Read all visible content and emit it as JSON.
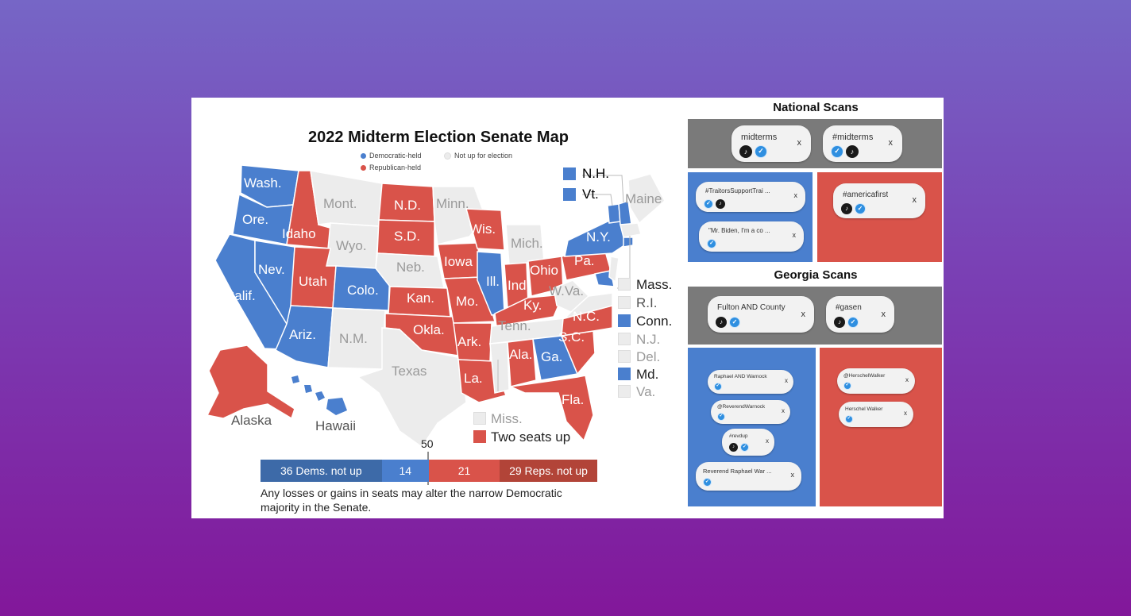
{
  "map": {
    "title": "2022 Midterm Election Senate Map",
    "legend": {
      "dem": "Democratic-held",
      "none": "Not up for election",
      "rep": "Republican-held"
    },
    "colors": {
      "dem": "#4a7fce",
      "rep": "#d9534a",
      "none": "#ececec"
    },
    "states": [
      {
        "name": "Wash.",
        "party": "dem"
      },
      {
        "name": "Ore.",
        "party": "dem"
      },
      {
        "name": "Calif.",
        "party": "dem"
      },
      {
        "name": "Nev.",
        "party": "dem"
      },
      {
        "name": "Idaho",
        "party": "rep"
      },
      {
        "name": "Mont.",
        "party": "none"
      },
      {
        "name": "Wyo.",
        "party": "none"
      },
      {
        "name": "Utah",
        "party": "rep"
      },
      {
        "name": "Colo.",
        "party": "dem"
      },
      {
        "name": "Ariz.",
        "party": "dem"
      },
      {
        "name": "N.M.",
        "party": "none"
      },
      {
        "name": "N.D.",
        "party": "rep"
      },
      {
        "name": "S.D.",
        "party": "rep"
      },
      {
        "name": "Neb.",
        "party": "none"
      },
      {
        "name": "Kan.",
        "party": "rep"
      },
      {
        "name": "Okla.",
        "party": "rep"
      },
      {
        "name": "Texas",
        "party": "none"
      },
      {
        "name": "Minn.",
        "party": "none"
      },
      {
        "name": "Iowa",
        "party": "rep"
      },
      {
        "name": "Mo.",
        "party": "rep"
      },
      {
        "name": "Ark.",
        "party": "rep"
      },
      {
        "name": "La.",
        "party": "rep"
      },
      {
        "name": "Wis.",
        "party": "rep"
      },
      {
        "name": "Ill.",
        "party": "dem"
      },
      {
        "name": "Mich.",
        "party": "none"
      },
      {
        "name": "Ind.",
        "party": "rep"
      },
      {
        "name": "Ohio",
        "party": "rep"
      },
      {
        "name": "Ky.",
        "party": "rep"
      },
      {
        "name": "Tenn.",
        "party": "none"
      },
      {
        "name": "Ala.",
        "party": "rep"
      },
      {
        "name": "Ga.",
        "party": "dem"
      },
      {
        "name": "Fla.",
        "party": "rep"
      },
      {
        "name": "S.C.",
        "party": "rep"
      },
      {
        "name": "N.C.",
        "party": "rep"
      },
      {
        "name": "W.Va.",
        "party": "none"
      },
      {
        "name": "Pa.",
        "party": "rep"
      },
      {
        "name": "N.Y.",
        "party": "dem"
      },
      {
        "name": "Maine",
        "party": "none"
      },
      {
        "name": "Alaska",
        "party": "rep"
      },
      {
        "name": "Hawaii",
        "party": "dem"
      }
    ],
    "ne_callouts": [
      {
        "name": "N.H.",
        "party": "dem"
      },
      {
        "name": "Vt.",
        "party": "dem"
      }
    ],
    "east_callouts": [
      {
        "name": "Mass.",
        "party": "none"
      },
      {
        "name": "R.I.",
        "party": "none"
      },
      {
        "name": "Conn.",
        "party": "dem"
      },
      {
        "name": "N.J.",
        "party": "none"
      },
      {
        "name": "Del.",
        "party": "none"
      },
      {
        "name": "Md.",
        "party": "dem"
      },
      {
        "name": "Va.",
        "party": "none"
      }
    ],
    "extra_legend": {
      "miss": "Miss.",
      "two_seats": "Two seats up"
    },
    "seat_bar": {
      "marker": "50",
      "segments": [
        {
          "label": "36 Dems. not up",
          "seats": 36,
          "color": "#3d6aa8"
        },
        {
          "label": "14",
          "seats": 14,
          "color": "#4a7fce"
        },
        {
          "label": "21",
          "seats": 21,
          "color": "#d9534a"
        },
        {
          "label": "29 Reps. not up",
          "seats": 29,
          "color": "#b24438"
        }
      ]
    },
    "note": "Any losses or gains in seats may alter the narrow Democratic majority in the Senate."
  },
  "scans": {
    "national_title": "National Scans",
    "georgia_title": "Georgia Scans",
    "close_glyph": "x",
    "national_neutral": [
      {
        "text": "midterms",
        "icons": [
          "tiktok",
          "twitter"
        ]
      },
      {
        "text": "#midterms",
        "icons": [
          "twitter",
          "tiktok"
        ]
      }
    ],
    "national_dem": [
      {
        "text": "#TraitorsSupportTrai ...",
        "icons": [
          "twitter",
          "tiktok"
        ]
      },
      {
        "text": "\"Mr. Biden, I'm a co ...",
        "icons": [
          "twitter"
        ]
      }
    ],
    "national_rep": [
      {
        "text": "#americafirst",
        "icons": [
          "tiktok",
          "twitter"
        ]
      }
    ],
    "georgia_neutral": [
      {
        "text": "Fulton AND County",
        "icons": [
          "tiktok",
          "twitter"
        ]
      },
      {
        "text": "#gasen",
        "icons": [
          "tiktok",
          "twitter"
        ]
      }
    ],
    "georgia_dem": [
      {
        "text": "Raphael AND Warnock",
        "icons": [
          "twitter"
        ]
      },
      {
        "text": "@ReverendWarnock",
        "icons": [
          "twitter"
        ]
      },
      {
        "text": "#revdup",
        "icons": [
          "tiktok",
          "twitter"
        ]
      },
      {
        "text": "Reverend Raphael War ...",
        "icons": [
          "twitter"
        ]
      }
    ],
    "georgia_rep": [
      {
        "text": "@HerschelWalker",
        "icons": [
          "twitter"
        ]
      },
      {
        "text": "Herschel Walker",
        "icons": [
          "twitter"
        ]
      }
    ]
  }
}
